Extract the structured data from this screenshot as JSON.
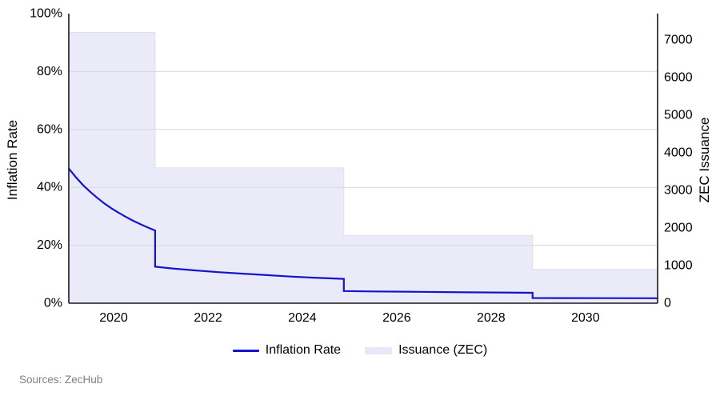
{
  "page": {
    "source_note": "Sources: ZecHub"
  },
  "chart": {
    "left_axis": {
      "title": "Inflation Rate",
      "tick_values": [
        0,
        20,
        40,
        60,
        80,
        100
      ],
      "tick_suffix": "%",
      "min": 0,
      "max": 100
    },
    "right_axis": {
      "title": "ZEC Issuance",
      "tick_values": [
        0,
        1000,
        2000,
        3000,
        4000,
        5000,
        6000,
        7000
      ],
      "min": 0,
      "max": 7700
    },
    "x_axis": {
      "tick_values": [
        2020,
        2022,
        2024,
        2026,
        2028,
        2030
      ],
      "min": 2019.05,
      "max": 2031.53
    },
    "legend": {
      "items": [
        {
          "label": "Inflation Rate",
          "marker": "line",
          "color": "#1414cc"
        },
        {
          "label": "Issuance (ZEC)",
          "marker": "band",
          "color": "#e7e7f7"
        }
      ]
    },
    "colors": {
      "line": "#1414cc",
      "area_fill": "#eaeaf8",
      "area_edge": "#dedef2",
      "grid": "#d9d9dd",
      "axis": "#1a1a1a",
      "tick_text": "#000000",
      "source_text": "#7f7f7f"
    }
  },
  "chart_data": {
    "type": "line",
    "title": "",
    "xlabel": "",
    "left_ylabel": "Inflation Rate",
    "right_ylabel": "ZEC Issuance",
    "x_range": [
      2019.05,
      2031.53
    ],
    "left_ylim": [
      0,
      100
    ],
    "right_ylim": [
      0,
      7700
    ],
    "grid": "horizontal-only",
    "legend_position": "bottom-center",
    "series": [
      {
        "name": "Inflation Rate",
        "type": "line",
        "axis": "left",
        "unit": "percent",
        "points": [
          [
            2019.05,
            46.5
          ],
          [
            2019.2,
            43.5
          ],
          [
            2019.35,
            40.8
          ],
          [
            2019.5,
            38.5
          ],
          [
            2019.65,
            36.4
          ],
          [
            2019.8,
            34.5
          ],
          [
            2019.95,
            32.8
          ],
          [
            2020.1,
            31.3
          ],
          [
            2020.25,
            29.9
          ],
          [
            2020.4,
            28.6
          ],
          [
            2020.55,
            27.4
          ],
          [
            2020.7,
            26.3
          ],
          [
            2020.88,
            25.1
          ],
          [
            2020.88,
            12.6
          ],
          [
            2021.25,
            12.0
          ],
          [
            2021.75,
            11.3
          ],
          [
            2022.25,
            10.7
          ],
          [
            2022.75,
            10.2
          ],
          [
            2023.25,
            9.7
          ],
          [
            2023.75,
            9.2
          ],
          [
            2024.25,
            8.8
          ],
          [
            2024.88,
            8.4
          ],
          [
            2024.88,
            4.2
          ],
          [
            2025.5,
            4.07
          ],
          [
            2026.5,
            3.92
          ],
          [
            2027.5,
            3.77
          ],
          [
            2028.88,
            3.58
          ],
          [
            2028.88,
            1.79
          ],
          [
            2029.5,
            1.77
          ],
          [
            2030.5,
            1.74
          ],
          [
            2031.53,
            1.71
          ]
        ]
      },
      {
        "name": "Issuance (ZEC)",
        "type": "step-area",
        "axis": "right",
        "unit": "ZEC per day",
        "steps": [
          {
            "from": 2019.05,
            "to": 2020.88,
            "value": 7200
          },
          {
            "from": 2020.88,
            "to": 2024.88,
            "value": 3600
          },
          {
            "from": 2024.88,
            "to": 2028.88,
            "value": 1800
          },
          {
            "from": 2028.88,
            "to": 2031.53,
            "value": 900
          }
        ]
      }
    ]
  }
}
